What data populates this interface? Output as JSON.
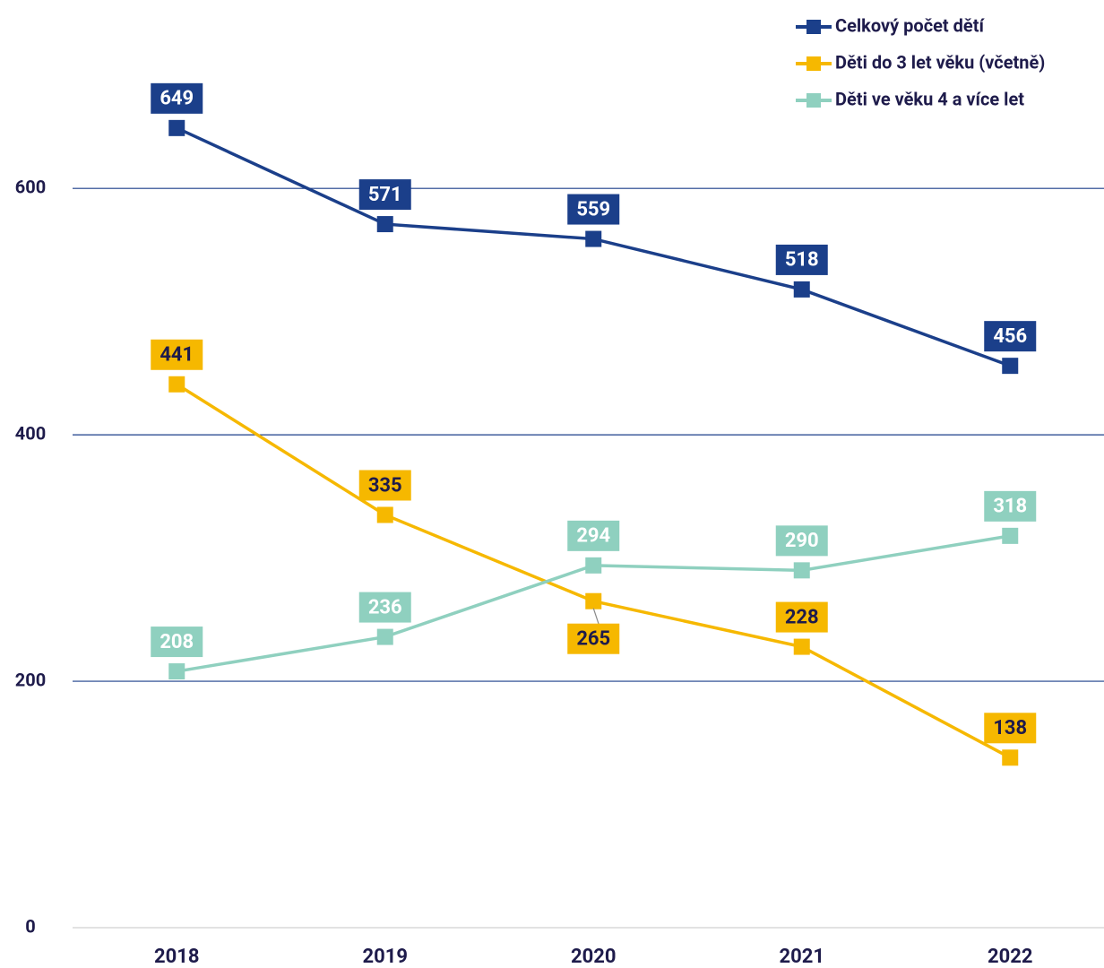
{
  "chart_data": {
    "type": "line",
    "categories": [
      "2018",
      "2019",
      "2020",
      "2021",
      "2022"
    ],
    "series": [
      {
        "name": "Celkový počet dětí",
        "color": "#1b3f8a",
        "values": [
          649,
          571,
          559,
          518,
          456
        ]
      },
      {
        "name": "Děti do 3 let věku (včetně)",
        "color": "#f6b800",
        "values": [
          441,
          335,
          265,
          228,
          138
        ]
      },
      {
        "name": "Děti ve věku 4 a více let",
        "color": "#8fd0bf",
        "values": [
          208,
          236,
          294,
          290,
          318
        ]
      }
    ],
    "ylim": [
      0,
      750
    ],
    "yticks": [
      0,
      200,
      400,
      600
    ],
    "grid": true,
    "legend": "top-right"
  }
}
